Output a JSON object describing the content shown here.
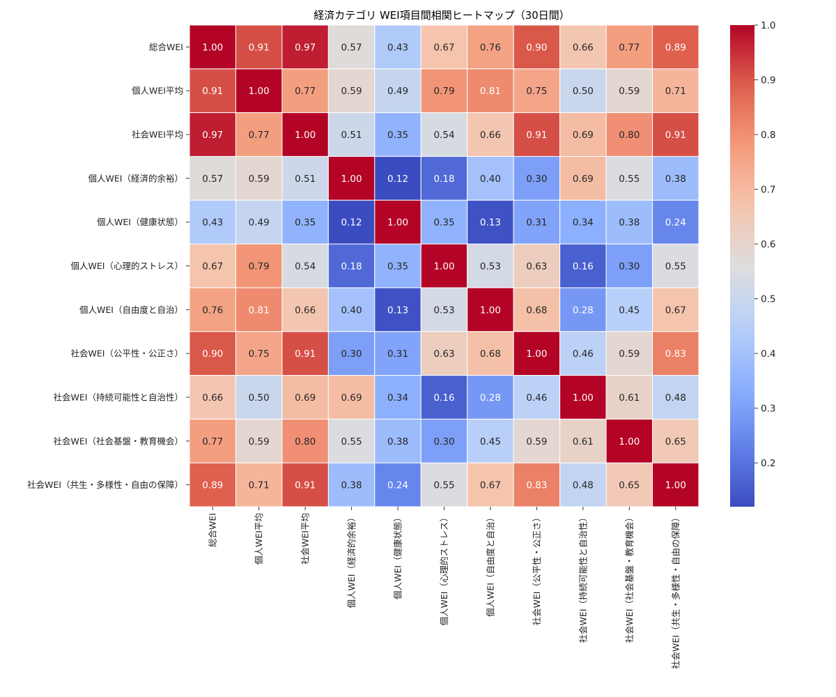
{
  "chart_data": {
    "type": "heatmap",
    "title": "経済カテゴリ WEI項目間相関ヒートマップ（30日間）",
    "labels": [
      "総合WEI",
      "個人WEI平均",
      "社会WEI平均",
      "個人WEI（経済的余裕）",
      "個人WEI（健康状態）",
      "個人WEI（心理的ストレス）",
      "個人WEI（自由度と自治）",
      "社会WEI（公平性・公正さ）",
      "社会WEI（持続可能性と自治性）",
      "社会WEI（社会基盤・教育機会）",
      "社会WEI（共生・多様性・自由の保障）"
    ],
    "matrix": [
      [
        1.0,
        0.91,
        0.97,
        0.57,
        0.43,
        0.67,
        0.76,
        0.9,
        0.66,
        0.77,
        0.89
      ],
      [
        0.91,
        1.0,
        0.77,
        0.59,
        0.49,
        0.79,
        0.81,
        0.75,
        0.5,
        0.59,
        0.71
      ],
      [
        0.97,
        0.77,
        1.0,
        0.51,
        0.35,
        0.54,
        0.66,
        0.91,
        0.69,
        0.8,
        0.91
      ],
      [
        0.57,
        0.59,
        0.51,
        1.0,
        0.12,
        0.18,
        0.4,
        0.3,
        0.69,
        0.55,
        0.38
      ],
      [
        0.43,
        0.49,
        0.35,
        0.12,
        1.0,
        0.35,
        0.13,
        0.31,
        0.34,
        0.38,
        0.24
      ],
      [
        0.67,
        0.79,
        0.54,
        0.18,
        0.35,
        1.0,
        0.53,
        0.63,
        0.16,
        0.3,
        0.55
      ],
      [
        0.76,
        0.81,
        0.66,
        0.4,
        0.13,
        0.53,
        1.0,
        0.68,
        0.28,
        0.45,
        0.67
      ],
      [
        0.9,
        0.75,
        0.91,
        0.3,
        0.31,
        0.63,
        0.68,
        1.0,
        0.46,
        0.59,
        0.83
      ],
      [
        0.66,
        0.5,
        0.69,
        0.69,
        0.34,
        0.16,
        0.28,
        0.46,
        1.0,
        0.61,
        0.48
      ],
      [
        0.77,
        0.59,
        0.8,
        0.55,
        0.38,
        0.3,
        0.45,
        0.59,
        0.61,
        1.0,
        0.65
      ],
      [
        0.89,
        0.71,
        0.91,
        0.38,
        0.24,
        0.55,
        0.67,
        0.83,
        0.48,
        0.65,
        1.0
      ]
    ],
    "colormap": "coolwarm",
    "vmin": 0.12,
    "vmax": 1.0,
    "colorbar_ticks": [
      "0.2",
      "0.3",
      "0.4",
      "0.5",
      "0.6",
      "0.7",
      "0.8",
      "0.9",
      "1.0"
    ],
    "value_format": "2 decimals"
  }
}
